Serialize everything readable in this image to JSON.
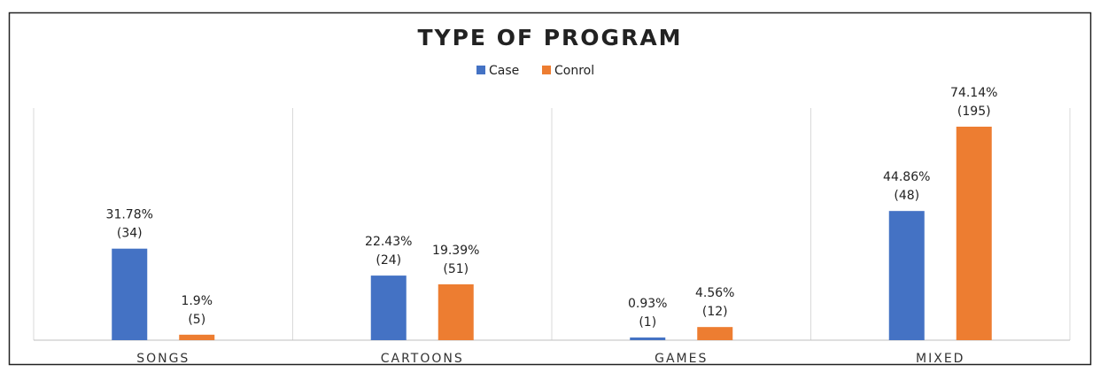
{
  "chart_data": {
    "type": "bar",
    "title": "TYPE OF PROGRAM",
    "categories": [
      "SONGS",
      "CARTOONS",
      "GAMES",
      "MIXED"
    ],
    "series": [
      {
        "name": "Case",
        "color": "#4472c4",
        "values": [
          31.78,
          22.43,
          0.93,
          44.86
        ],
        "value_labels": [
          [
            "31.78%",
            "(34)"
          ],
          [
            "22.43%",
            "(24)"
          ],
          [
            "0.93%",
            "(1)"
          ],
          [
            "44.86%",
            "(48)"
          ]
        ]
      },
      {
        "name": "Conrol",
        "color": "#ed7d31",
        "values": [
          1.9,
          19.39,
          4.56,
          74.14
        ],
        "value_labels": [
          [
            "1.9%",
            "(5)"
          ],
          [
            "19.39%",
            "(51)"
          ],
          [
            "4.56%",
            "(12)"
          ],
          [
            "74.14%",
            "(195)"
          ]
        ]
      }
    ],
    "grid": true
  }
}
